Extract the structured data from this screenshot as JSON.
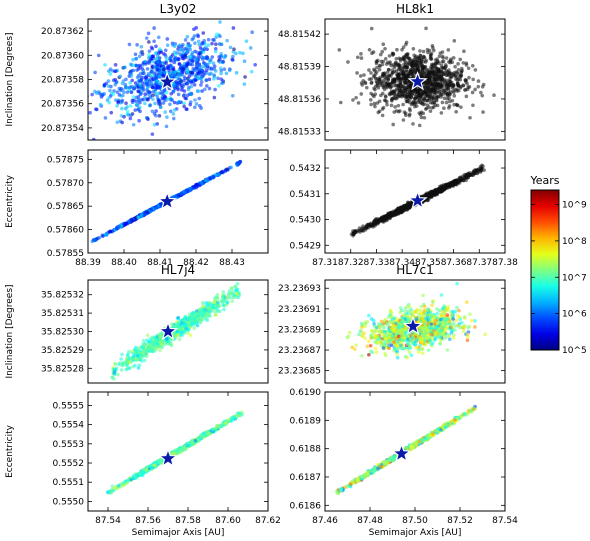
{
  "colorbar": {
    "title": "Years",
    "ticks": [
      "10^9",
      "10^8",
      "10^7",
      "10^6",
      "10^5"
    ],
    "log_min": 5,
    "log_max": 9.4
  },
  "chart_data": [
    {
      "type": "scatter",
      "title": "L3y02",
      "ylabel": "Inclination [Degrees]",
      "xlabel": "",
      "color_mode": "colormap",
      "xlim": [
        88.39,
        88.44
      ],
      "ylim": [
        20.87353,
        20.87363
      ],
      "yticks": [
        "20.87362",
        "20.87360",
        "20.87358",
        "20.87356",
        "20.87354"
      ],
      "xticks": [],
      "cloud": {
        "cx": 88.412,
        "cy": 20.873583,
        "sx": 0.009,
        "sy": 1.6e-05,
        "rho": 0.45,
        "n": 900,
        "log_age_center": 5.9,
        "log_age_spread": 0.35
      },
      "star": {
        "x": 88.412,
        "y": 20.873578
      }
    },
    {
      "type": "scatter",
      "title": "HL8k1",
      "ylabel": "",
      "xlabel": "",
      "color_mode": "black",
      "xlim": [
        87.31,
        87.38
      ],
      "ylim": [
        48.815322,
        48.815434
      ],
      "yticks": [
        "48.81542",
        "48.81539",
        "48.81536",
        "48.81533"
      ],
      "xticks": [],
      "cloud": {
        "cx": 87.346,
        "cy": 48.815377,
        "sx": 0.009,
        "sy": 1.35e-05,
        "rho": 0.0,
        "n": 1100
      },
      "star": {
        "x": 87.346,
        "y": 48.815376
      }
    },
    {
      "type": "scatter",
      "title": "",
      "ylabel": "Eccentricity",
      "xlabel": "",
      "color_mode": "colormap",
      "xlim": [
        88.39,
        88.44
      ],
      "ylim": [
        0.57855,
        0.57877
      ],
      "yticks": [
        "0.57875",
        "0.57870",
        "0.57865",
        "0.57860",
        "0.57855"
      ],
      "xticks": [
        "88.39",
        "88.40",
        "88.41",
        "88.42",
        "88.43"
      ],
      "line": {
        "x0": 88.392,
        "y0": 0.578578,
        "x1": 88.432,
        "y1": 0.578742,
        "spread": 1.2e-06,
        "n": 700,
        "log_age_center": 5.9,
        "log_age_spread": 0.35
      },
      "star": {
        "x": 88.412,
        "y": 0.57866
      }
    },
    {
      "type": "scatter",
      "title": "",
      "ylabel": "",
      "xlabel": "",
      "color_mode": "black",
      "xlim": [
        87.31,
        87.38
      ],
      "ylim": [
        0.54287,
        0.54327
      ],
      "yticks": [
        "0.5432",
        "0.5431",
        "0.5430",
        "0.5429"
      ],
      "xticks": [
        "87.31",
        "87.32",
        "87.33",
        "87.34",
        "87.35",
        "87.36",
        "87.37",
        "87.38"
      ],
      "line": {
        "x0": 87.321,
        "y0": 0.542945,
        "x1": 87.371,
        "y1": 0.543197,
        "spread": 5.5e-06,
        "n": 1000
      },
      "star": {
        "x": 87.346,
        "y": 0.543073
      }
    },
    {
      "type": "scatter",
      "title": "HL7j4",
      "ylabel": "Inclination [Degrees]",
      "xlabel": "",
      "color_mode": "colormap",
      "xlim": [
        87.53,
        87.62
      ],
      "ylim": [
        35.825272,
        35.825328
      ],
      "yticks": [
        "35.82532",
        "35.82531",
        "35.82530",
        "35.82529",
        "35.82528"
      ],
      "xticks": [],
      "line": {
        "x0": 87.543,
        "y0": 35.825279,
        "x1": 87.605,
        "y1": 35.825322,
        "spread": 2.2e-06,
        "n": 900,
        "log_age_center": 6.95,
        "log_age_spread": 0.3
      },
      "star": {
        "x": 87.57,
        "y": 35.8253
      }
    },
    {
      "type": "scatter",
      "title": "HL7c1",
      "ylabel": "",
      "xlabel": "",
      "color_mode": "colormap",
      "xlim": [
        87.45,
        87.54
      ],
      "ylim": [
        23.236838,
        23.236938
      ],
      "yticks": [
        "23.23693",
        "23.23691",
        "23.23689",
        "23.23687",
        "23.23685"
      ],
      "xticks": [],
      "cloud": {
        "cx": 87.495,
        "cy": 23.23689,
        "sx": 0.011,
        "sy": 9.5e-06,
        "rho": 0.35,
        "n": 1100,
        "log_age_center": 7.3,
        "log_age_spread": 0.55
      },
      "star": {
        "x": 87.494,
        "y": 23.236893
      }
    },
    {
      "type": "scatter",
      "title": "",
      "ylabel": "Eccentricity",
      "xlabel": "Semimajor Axis [AU]",
      "color_mode": "colormap",
      "xlim": [
        87.53,
        87.62
      ],
      "ylim": [
        0.55495,
        0.55557
      ],
      "yticks": [
        "0.5555",
        "0.5554",
        "0.5553",
        "0.5552",
        "0.5551",
        "0.5550"
      ],
      "xticks": [
        "87.54",
        "87.56",
        "87.58",
        "87.60",
        "87.62"
      ],
      "line": {
        "x0": 87.541,
        "y0": 0.555052,
        "x1": 87.606,
        "y1": 0.555454,
        "spread": 5.5e-06,
        "n": 900,
        "log_age_center": 6.95,
        "log_age_spread": 0.3
      },
      "star": {
        "x": 87.57,
        "y": 0.555223
      }
    },
    {
      "type": "scatter",
      "title": "",
      "ylabel": "",
      "xlabel": "Semimajor Axis [AU]",
      "color_mode": "colormap",
      "xlim": [
        87.46,
        87.54
      ],
      "ylim": [
        0.61858,
        0.619
      ],
      "yticks": [
        "0.6190",
        "0.6189",
        "0.6188",
        "0.6187",
        "0.6186"
      ],
      "xticks": [
        "87.46",
        "87.48",
        "87.50",
        "87.52",
        "87.54"
      ],
      "line": {
        "x0": 87.466,
        "y0": 0.618648,
        "x1": 87.526,
        "y1": 0.61894,
        "spread": 3.5e-06,
        "n": 900,
        "log_age_center": 7.3,
        "log_age_spread": 0.55
      },
      "star": {
        "x": 87.494,
        "y": 0.618782
      }
    }
  ]
}
